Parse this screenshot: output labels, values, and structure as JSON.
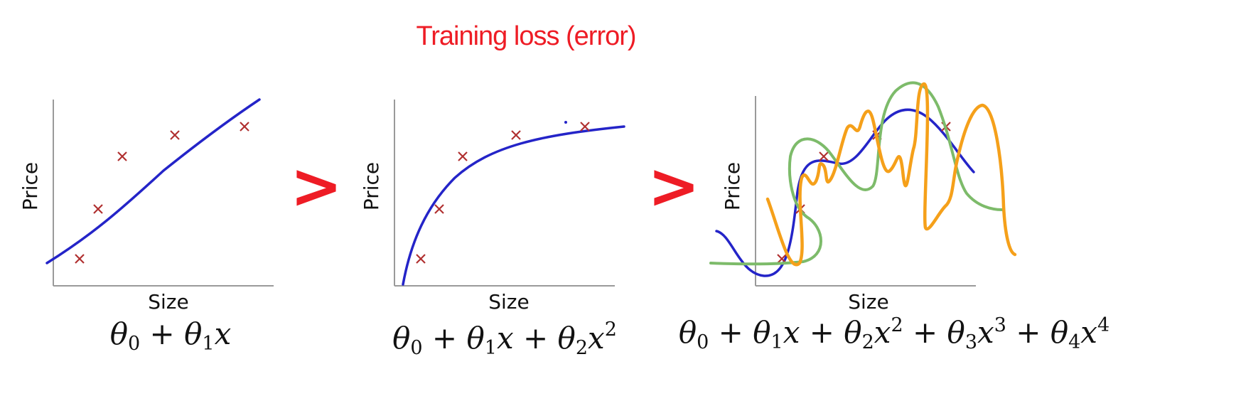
{
  "heading": "Training loss (error)",
  "comparison_symbol": ">",
  "accent_color": "#ee1c25",
  "panels": [
    {
      "x_label": "Size",
      "y_label": "Price",
      "formula_parts": [
        "θ",
        "0",
        " + ",
        "θ",
        "1",
        "x"
      ]
    },
    {
      "x_label": "Size",
      "y_label": "Price",
      "formula_parts": [
        "θ",
        "0",
        " + ",
        "θ",
        "1",
        "x",
        " + ",
        "θ",
        "2",
        "x",
        "2"
      ]
    },
    {
      "x_label": "Size",
      "y_label": "Price",
      "formula_parts": [
        "θ",
        "0",
        " + ",
        "θ",
        "1",
        "x",
        " + ",
        "θ",
        "2",
        "x",
        "2",
        " + ",
        "θ",
        "3",
        "x",
        "3",
        " + ",
        "θ",
        "4",
        "x",
        "4"
      ]
    }
  ],
  "colors": {
    "fit_curve": "#2424c8",
    "data_marker": "#b03030",
    "overfit_green": "#7dbb6a",
    "overfit_orange": "#f5a01a",
    "axis": "#9a9a9a"
  }
}
